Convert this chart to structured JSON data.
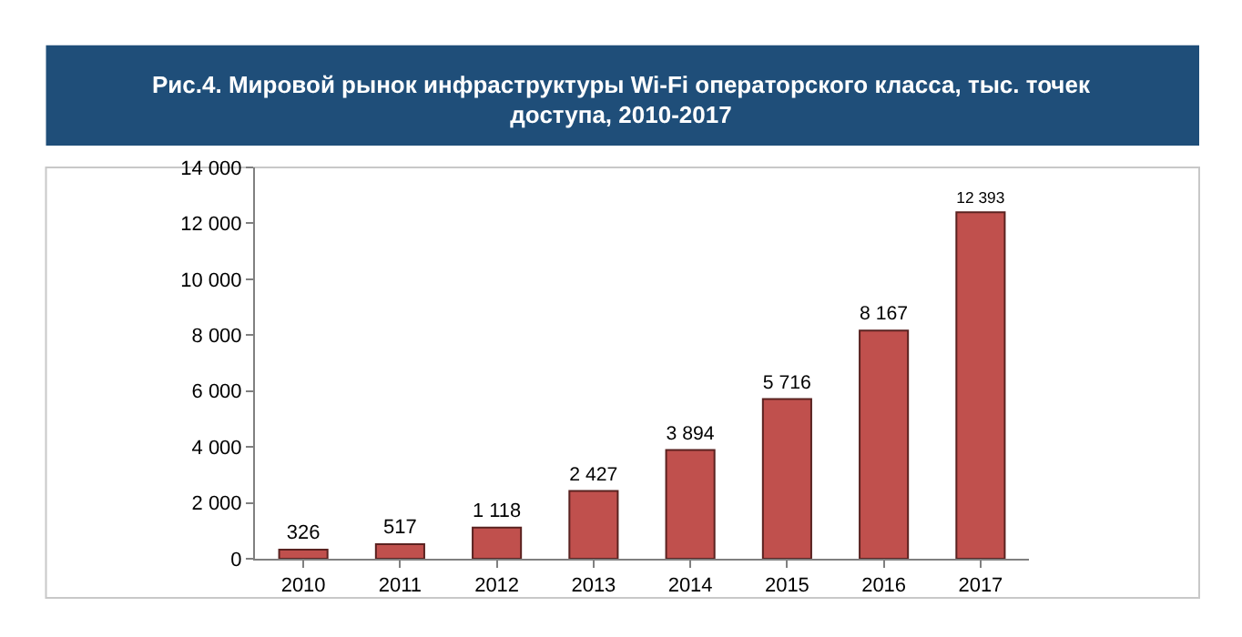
{
  "chart_data": {
    "type": "bar",
    "title": "Рис.4. Мировой рынок инфраструктуры Wi-Fi операторского класса, тыс. точек доступа, 2010-2017",
    "categories": [
      "2010",
      "2011",
      "2012",
      "2013",
      "2014",
      "2015",
      "2016",
      "2017"
    ],
    "values": [
      326,
      517,
      1118,
      2427,
      3894,
      5716,
      8167,
      12393
    ],
    "value_labels": [
      "326",
      "517",
      "1 118",
      "2 427",
      "3 894",
      "5 716",
      "8 167",
      "12 393"
    ],
    "color": "#c0504d",
    "ylim": [
      0,
      14000
    ],
    "yticks": [
      {
        "value": 0,
        "label": "0"
      },
      {
        "value": 2000,
        "label": "2 000"
      },
      {
        "value": 4000,
        "label": "4 000"
      },
      {
        "value": 6000,
        "label": "6 000"
      },
      {
        "value": 8000,
        "label": "8 000"
      },
      {
        "value": 10000,
        "label": "10 000"
      },
      {
        "value": 12000,
        "label": "12 000"
      },
      {
        "value": 14000,
        "label": "14 000"
      }
    ],
    "grid": false,
    "legend": false
  }
}
